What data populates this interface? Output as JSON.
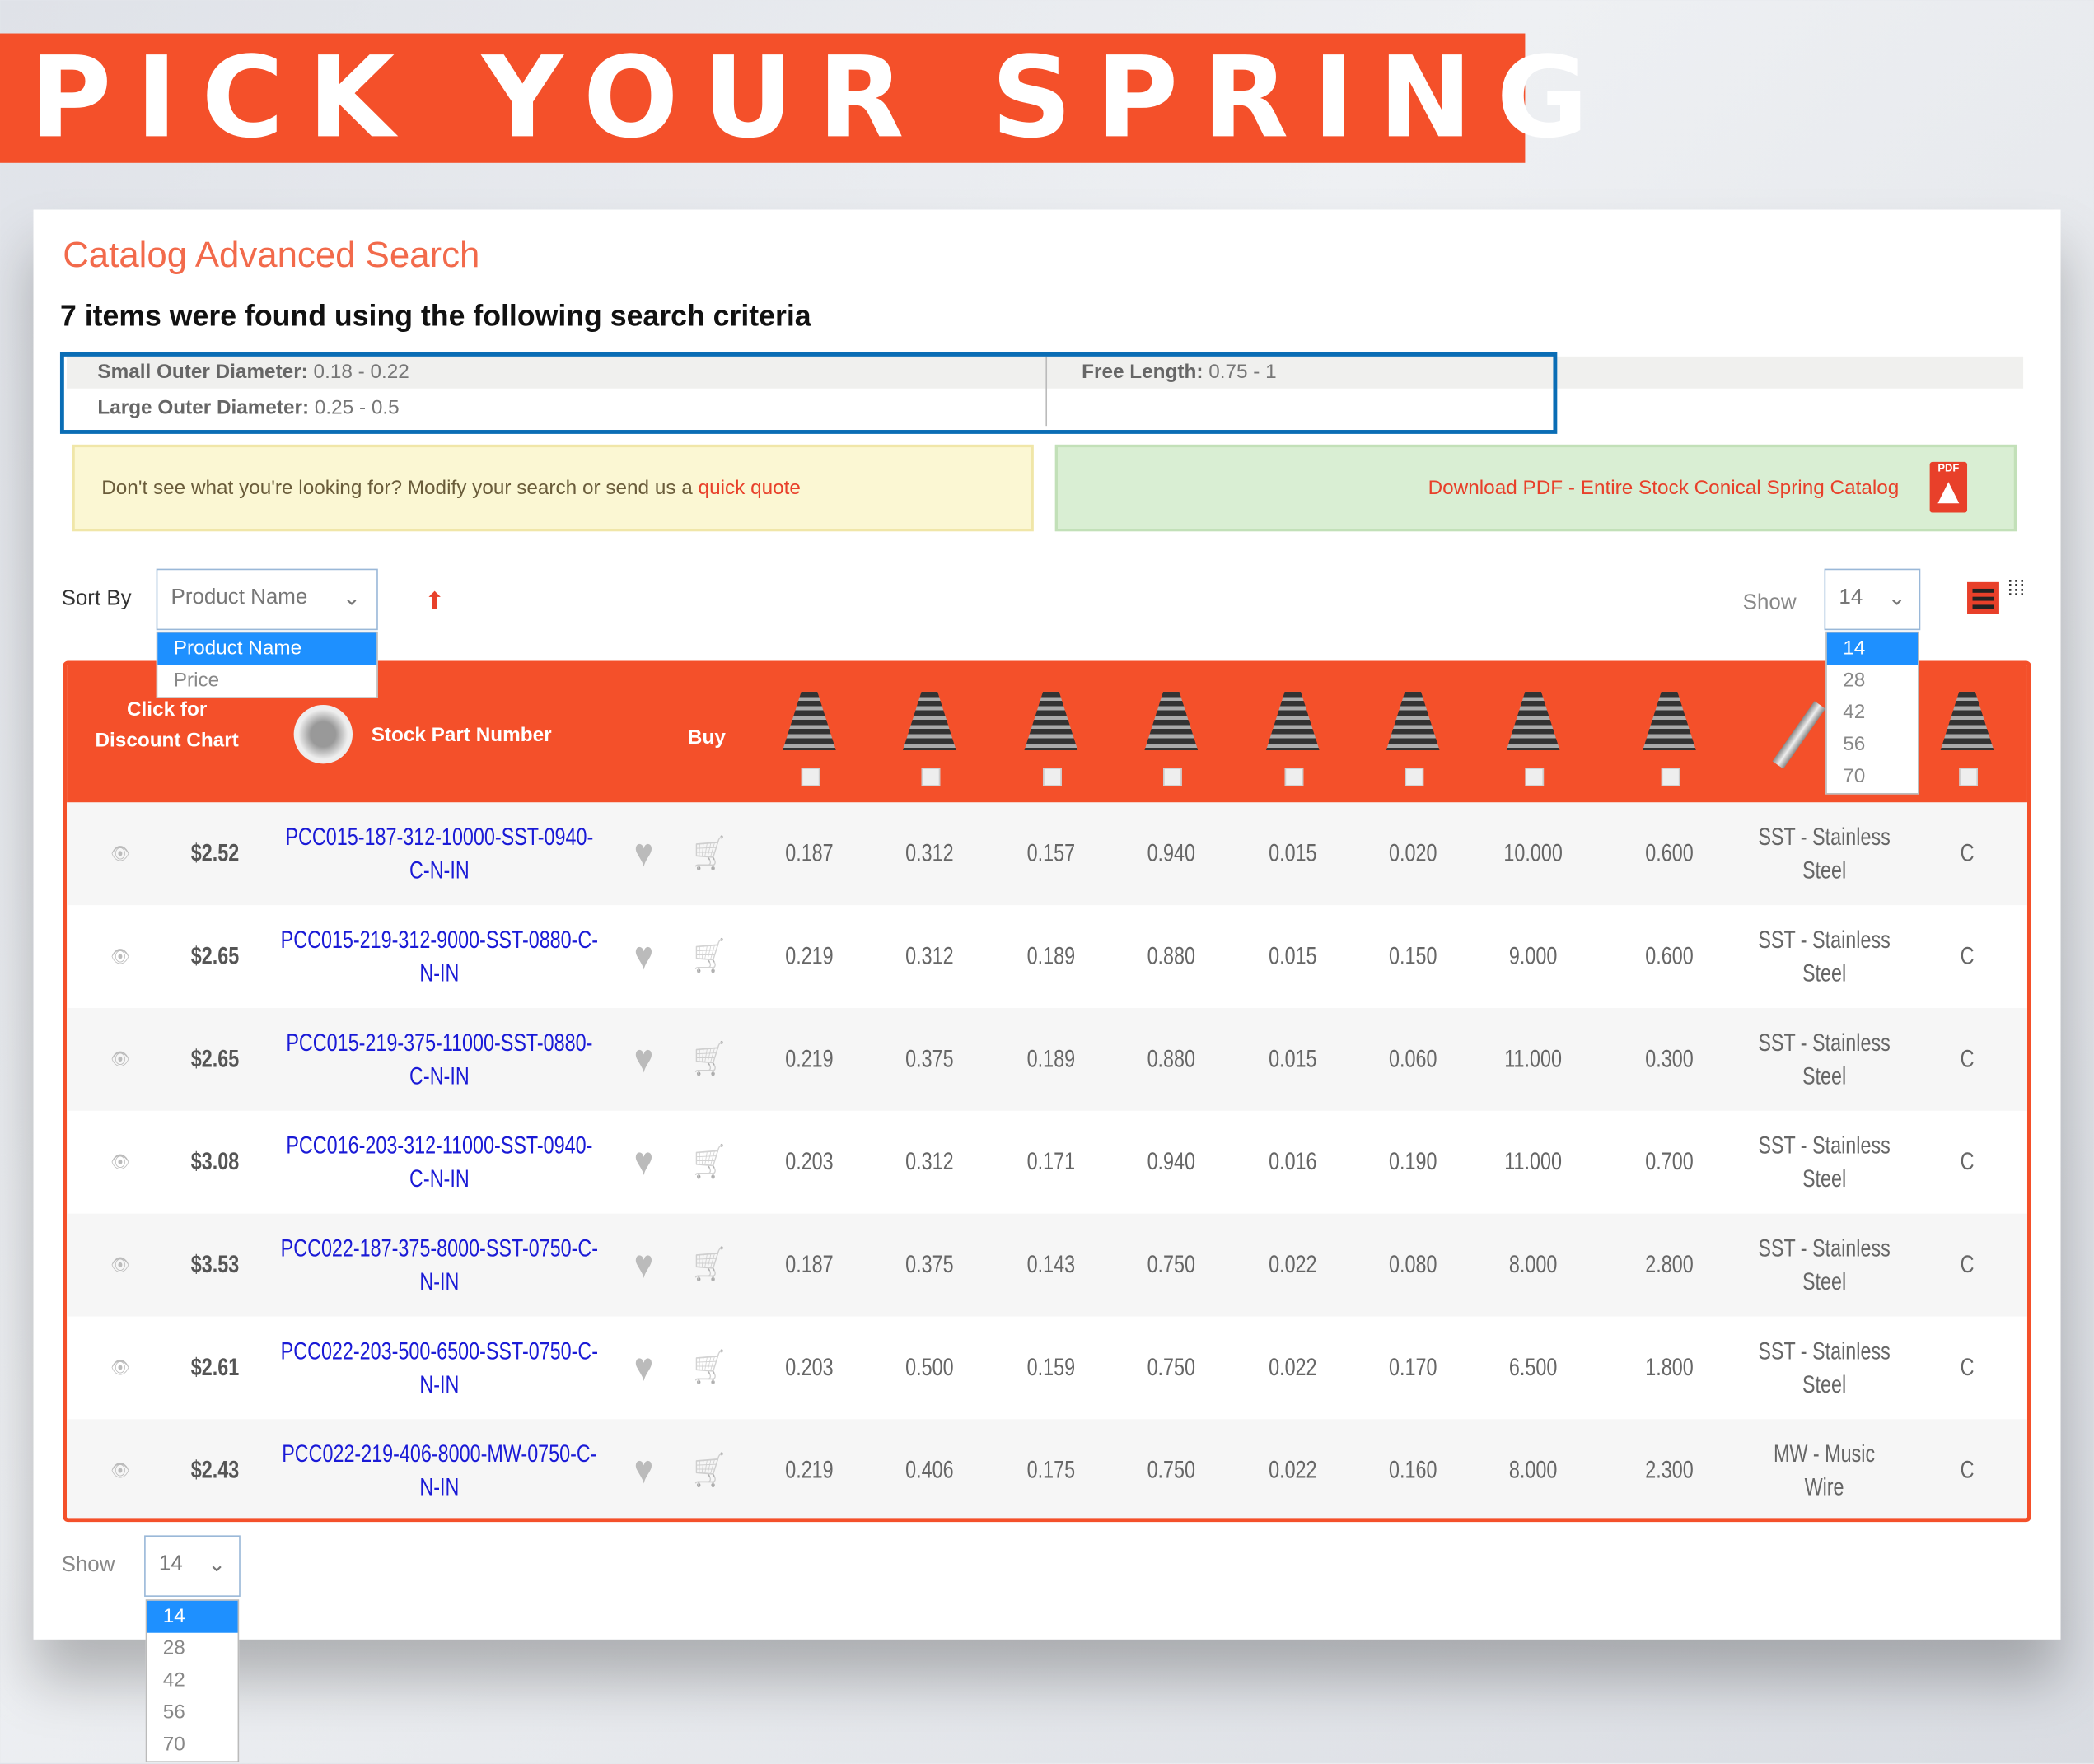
{
  "banner": {
    "title": "PICK YOUR SPRING"
  },
  "page": {
    "title": "Catalog Advanced Search",
    "results_text": "7 items were found using the following search criteria"
  },
  "criteria": [
    {
      "label": "Small Outer Diameter:",
      "value": "0.18 - 0.22"
    },
    {
      "label": "Large Outer Diameter:",
      "value": "0.25 - 0.5"
    },
    {
      "label": "Free Length:",
      "value": "0.75 - 1"
    }
  ],
  "notice": {
    "text": "Don't see what you're looking for? Modify your search or send us a ",
    "link": "quick quote"
  },
  "download": {
    "label": "Download PDF - Entire Stock Conical Spring Catalog",
    "icon": "pdf-icon",
    "icon_text": "PDF"
  },
  "sort": {
    "label": "Sort By",
    "selected": "Product Name",
    "options": [
      "Product Name",
      "Price"
    ],
    "direction_icon": "arrow-up-icon"
  },
  "show": {
    "label": "Show",
    "selected": "14",
    "options": [
      "14",
      "28",
      "42",
      "56",
      "70"
    ]
  },
  "view_modes": [
    "list-view-icon",
    "grid-view-icon"
  ],
  "table": {
    "headers": {
      "discount": "Click for Discount Chart",
      "part": "Stock Part Number",
      "buy": "Buy"
    },
    "colors": {
      "header": "#f4502a",
      "link": "#1a1ad6"
    },
    "rows": [
      {
        "price": "$2.52",
        "part": "PCC015-187-312-10000-SST-0940-C-N-IN",
        "values": [
          "0.187",
          "0.312",
          "0.157",
          "0.940",
          "0.015",
          "0.020",
          "10.000",
          "0.600"
        ],
        "material": "SST - Stainless Steel",
        "end": "C"
      },
      {
        "price": "$2.65",
        "part": "PCC015-219-312-9000-SST-0880-C-N-IN",
        "values": [
          "0.219",
          "0.312",
          "0.189",
          "0.880",
          "0.015",
          "0.150",
          "9.000",
          "0.600"
        ],
        "material": "SST - Stainless Steel",
        "end": "C"
      },
      {
        "price": "$2.65",
        "part": "PCC015-219-375-11000-SST-0880-C-N-IN",
        "values": [
          "0.219",
          "0.375",
          "0.189",
          "0.880",
          "0.015",
          "0.060",
          "11.000",
          "0.300"
        ],
        "material": "SST - Stainless Steel",
        "end": "C"
      },
      {
        "price": "$3.08",
        "part": "PCC016-203-312-11000-SST-0940-C-N-IN",
        "values": [
          "0.203",
          "0.312",
          "0.171",
          "0.940",
          "0.016",
          "0.190",
          "11.000",
          "0.700"
        ],
        "material": "SST - Stainless Steel",
        "end": "C"
      },
      {
        "price": "$3.53",
        "part": "PCC022-187-375-8000-SST-0750-C-N-IN",
        "values": [
          "0.187",
          "0.375",
          "0.143",
          "0.750",
          "0.022",
          "0.080",
          "8.000",
          "2.800"
        ],
        "material": "SST - Stainless Steel",
        "end": "C"
      },
      {
        "price": "$2.61",
        "part": "PCC022-203-500-6500-SST-0750-C-N-IN",
        "values": [
          "0.203",
          "0.500",
          "0.159",
          "0.750",
          "0.022",
          "0.170",
          "6.500",
          "1.800"
        ],
        "material": "SST - Stainless Steel",
        "end": "C"
      },
      {
        "price": "$2.43",
        "part": "PCC022-219-406-8000-MW-0750-C-N-IN",
        "values": [
          "0.219",
          "0.406",
          "0.175",
          "0.750",
          "0.022",
          "0.160",
          "8.000",
          "2.300"
        ],
        "material": "MW - Music Wire",
        "end": "C"
      }
    ]
  }
}
